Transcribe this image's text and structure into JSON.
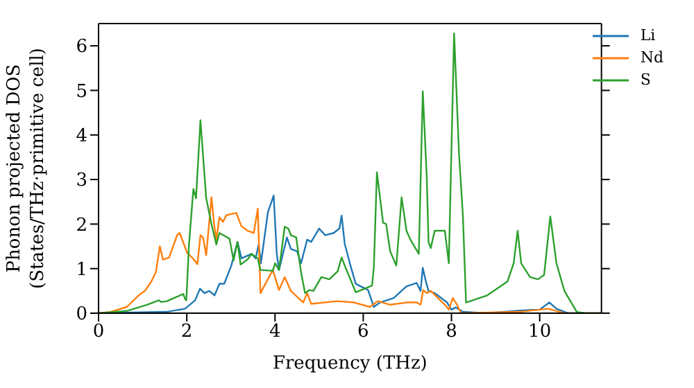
{
  "chart_data": {
    "type": "line",
    "xlabel": "Frequency (THz)",
    "ylabel": "Phonon projected DOS\n(States/THz·primitive cell)",
    "xlim": [
      0,
      11.4
    ],
    "xticks": [
      0,
      2,
      4,
      6,
      8,
      10
    ],
    "ylim": [
      0,
      6.5
    ],
    "yticks": [
      0,
      1,
      2,
      3,
      4,
      5,
      6
    ],
    "legend": "top right",
    "marker": "none",
    "line_style": "solid",
    "series": [
      {
        "name": "Li",
        "color": "#1f77b4",
        "x": [
          0,
          1.55,
          1.96,
          2.19,
          2.3,
          2.4,
          2.51,
          2.63,
          2.74,
          2.85,
          3.01,
          3.15,
          3.24,
          3.47,
          3.56,
          3.63,
          3.68,
          3.84,
          3.97,
          4.04,
          4.09,
          4.27,
          4.36,
          4.5,
          4.59,
          4.73,
          4.82,
          5.0,
          5.14,
          5.33,
          5.46,
          5.51,
          5.58,
          5.71,
          5.83,
          6.11,
          6.24,
          6.38,
          6.69,
          6.98,
          7.21,
          7.3,
          7.35,
          7.42,
          7.48,
          7.62,
          7.9,
          8.0,
          8.1,
          8.26,
          8.81,
          9.55,
          10.0,
          10.22,
          10.38,
          10.65,
          11.4
        ],
        "values": [
          0,
          0.03,
          0.1,
          0.29,
          0.55,
          0.45,
          0.5,
          0.4,
          0.66,
          0.66,
          1.07,
          1.6,
          1.23,
          1.33,
          1.23,
          1.54,
          1.12,
          2.27,
          2.64,
          1.33,
          0.97,
          1.7,
          1.44,
          1.39,
          1.12,
          1.65,
          1.6,
          1.9,
          1.75,
          1.8,
          1.9,
          2.19,
          1.56,
          1.07,
          0.66,
          0.52,
          0.14,
          0.24,
          0.34,
          0.6,
          0.68,
          0.5,
          1.02,
          0.71,
          0.5,
          0.45,
          0.24,
          0.08,
          0.13,
          0.03,
          0,
          0.06,
          0.08,
          0.24,
          0.1,
          0,
          0
        ]
      },
      {
        "name": "Nd",
        "color": "#ff7f0e",
        "x": [
          0,
          0.27,
          0.64,
          0.91,
          1.05,
          1.19,
          1.3,
          1.39,
          1.46,
          1.6,
          1.78,
          1.84,
          2.01,
          2.12,
          2.24,
          2.31,
          2.37,
          2.44,
          2.56,
          2.62,
          2.67,
          2.74,
          2.82,
          2.9,
          3.12,
          3.24,
          3.38,
          3.52,
          3.61,
          3.67,
          3.95,
          4.09,
          4.22,
          4.36,
          4.64,
          4.73,
          4.82,
          5.42,
          5.79,
          6.15,
          6.33,
          6.61,
          6.98,
          7.21,
          7.3,
          7.36,
          7.44,
          7.53,
          7.85,
          7.94,
          8.03,
          8.12,
          8.22,
          9.55,
          10.19,
          10.56,
          11.4
        ],
        "values": [
          0,
          0.03,
          0.14,
          0.4,
          0.5,
          0.7,
          0.92,
          1.5,
          1.2,
          1.25,
          1.75,
          1.8,
          1.35,
          1.25,
          1.1,
          1.75,
          1.7,
          1.3,
          2.6,
          2.0,
          1.65,
          2.15,
          2.05,
          2.2,
          2.25,
          1.95,
          1.85,
          1.8,
          2.35,
          0.45,
          0.97,
          0.52,
          0.81,
          0.5,
          0.24,
          0.45,
          0.21,
          0.27,
          0.24,
          0.14,
          0.27,
          0.19,
          0.24,
          0.24,
          0.19,
          0.52,
          0.45,
          0.5,
          0.19,
          0.08,
          0.34,
          0.2,
          0,
          0.03,
          0.1,
          0,
          0
        ]
      },
      {
        "name": "S",
        "color": "#2ca02c",
        "x": [
          0,
          0.64,
          1.1,
          1.37,
          1.42,
          1.55,
          1.92,
          1.96,
          1.99,
          2.05,
          2.15,
          2.21,
          2.31,
          2.44,
          2.56,
          2.67,
          2.74,
          2.97,
          3.06,
          3.15,
          3.22,
          3.38,
          3.47,
          3.61,
          3.67,
          3.95,
          4.0,
          4.09,
          4.22,
          4.3,
          4.36,
          4.48,
          4.59,
          4.68,
          4.78,
          4.87,
          5.05,
          5.23,
          5.42,
          5.51,
          5.6,
          5.83,
          6.2,
          6.24,
          6.31,
          6.45,
          6.52,
          6.61,
          6.75,
          6.87,
          6.98,
          7.07,
          7.26,
          7.35,
          7.44,
          7.48,
          7.53,
          7.62,
          7.76,
          7.85,
          7.94,
          8.06,
          8.17,
          8.26,
          8.33,
          8.81,
          9.27,
          9.41,
          9.5,
          9.58,
          9.78,
          9.96,
          10.1,
          10.24,
          10.38,
          10.56,
          10.84,
          11.02,
          11.4
        ],
        "values": [
          0,
          0.05,
          0.19,
          0.29,
          0.25,
          0.27,
          0.43,
          0.32,
          0.29,
          1.54,
          2.79,
          2.58,
          4.33,
          2.58,
          2.0,
          1.54,
          1.8,
          1.67,
          1.18,
          1.6,
          1.09,
          1.21,
          1.33,
          1.23,
          0.97,
          0.95,
          1.12,
          0.97,
          1.94,
          1.9,
          1.75,
          1.7,
          0.92,
          0.45,
          0.52,
          0.5,
          0.81,
          0.76,
          0.94,
          1.25,
          1.02,
          0.47,
          0.62,
          1.02,
          3.16,
          2.03,
          2.0,
          1.39,
          1.07,
          2.6,
          1.85,
          1.65,
          1.33,
          4.98,
          3.05,
          1.6,
          1.46,
          1.85,
          1.85,
          1.85,
          1.12,
          6.28,
          3.6,
          2.17,
          0.24,
          0.4,
          0.71,
          1.12,
          1.85,
          1.12,
          0.81,
          0.76,
          0.86,
          2.17,
          1.12,
          0.5,
          0.03,
          0,
          0
        ]
      }
    ]
  }
}
